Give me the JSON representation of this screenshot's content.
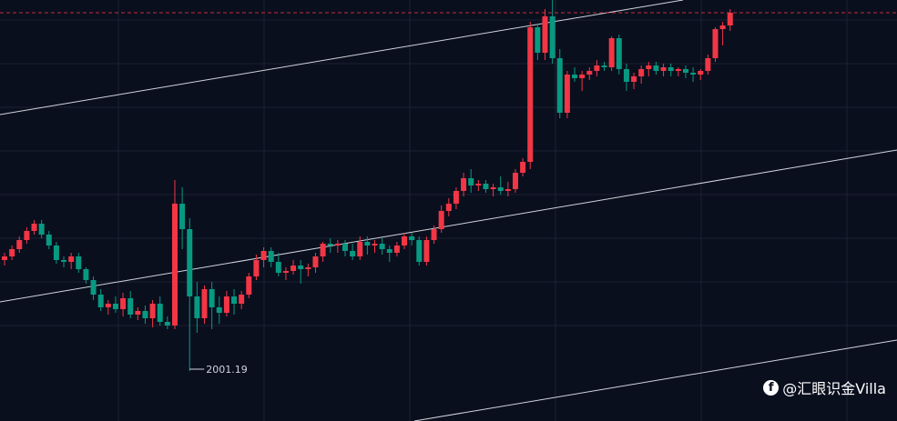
{
  "chart_data": {
    "type": "candlestick",
    "colors": {
      "up": "#f23645",
      "down": "#089981",
      "background": "#0a0f1e",
      "grid": "#1a2233",
      "channel": "#d0d4dc",
      "last_price_line": "#f23645"
    },
    "low_marker_label": "2001.19",
    "candles": [
      [
        2062,
        2066,
        2059,
        2064
      ],
      [
        2064,
        2070,
        2062,
        2068
      ],
      [
        2068,
        2075,
        2066,
        2073
      ],
      [
        2073,
        2080,
        2071,
        2078
      ],
      [
        2078,
        2084,
        2076,
        2082
      ],
      [
        2082,
        2084,
        2074,
        2076
      ],
      [
        2076,
        2078,
        2068,
        2070
      ],
      [
        2070,
        2072,
        2060,
        2062
      ],
      [
        2062,
        2064,
        2058,
        2061
      ],
      [
        2061,
        2066,
        2057,
        2064
      ],
      [
        2064,
        2066,
        2055,
        2057
      ],
      [
        2057,
        2058,
        2049,
        2051
      ],
      [
        2051,
        2053,
        2040,
        2043
      ],
      [
        2043,
        2046,
        2034,
        2036
      ],
      [
        2036,
        2040,
        2032,
        2038
      ],
      [
        2038,
        2042,
        2033,
        2035
      ],
      [
        2035,
        2044,
        2031,
        2041
      ],
      [
        2041,
        2045,
        2030,
        2032
      ],
      [
        2032,
        2036,
        2029,
        2034
      ],
      [
        2034,
        2037,
        2027,
        2030
      ],
      [
        2030,
        2040,
        2025,
        2038
      ],
      [
        2038,
        2042,
        2026,
        2028
      ],
      [
        2028,
        2031,
        2024,
        2026
      ],
      [
        2026,
        2106,
        2024,
        2093
      ],
      [
        2093,
        2102,
        2068,
        2079
      ],
      [
        2079,
        2085,
        2001,
        2042
      ],
      [
        2042,
        2050,
        2022,
        2030
      ],
      [
        2030,
        2048,
        2027,
        2046
      ],
      [
        2046,
        2050,
        2024,
        2036
      ],
      [
        2036,
        2042,
        2027,
        2033
      ],
      [
        2033,
        2045,
        2031,
        2042
      ],
      [
        2042,
        2046,
        2032,
        2038
      ],
      [
        2038,
        2045,
        2035,
        2043
      ],
      [
        2043,
        2055,
        2041,
        2053
      ],
      [
        2053,
        2065,
        2051,
        2062
      ],
      [
        2062,
        2069,
        2058,
        2067
      ],
      [
        2067,
        2069,
        2058,
        2061
      ],
      [
        2061,
        2066,
        2053,
        2055
      ],
      [
        2055,
        2058,
        2051,
        2056
      ],
      [
        2056,
        2062,
        2054,
        2059
      ],
      [
        2059,
        2062,
        2049,
        2057
      ],
      [
        2057,
        2060,
        2053,
        2058
      ],
      [
        2058,
        2066,
        2055,
        2064
      ],
      [
        2064,
        2072,
        2061,
        2071
      ],
      [
        2071,
        2074,
        2066,
        2070
      ],
      [
        2070,
        2073,
        2066,
        2071
      ],
      [
        2071,
        2073,
        2064,
        2067
      ],
      [
        2067,
        2071,
        2062,
        2064
      ],
      [
        2064,
        2075,
        2062,
        2072
      ],
      [
        2072,
        2075,
        2065,
        2070
      ],
      [
        2070,
        2073,
        2066,
        2071
      ],
      [
        2071,
        2074,
        2065,
        2068
      ],
      [
        2068,
        2070,
        2061,
        2066
      ],
      [
        2066,
        2072,
        2064,
        2070
      ],
      [
        2070,
        2077,
        2068,
        2075
      ],
      [
        2075,
        2077,
        2070,
        2073
      ],
      [
        2073,
        2075,
        2059,
        2061
      ],
      [
        2061,
        2075,
        2059,
        2073
      ],
      [
        2073,
        2081,
        2071,
        2079
      ],
      [
        2079,
        2092,
        2077,
        2089
      ],
      [
        2089,
        2096,
        2086,
        2093
      ],
      [
        2093,
        2102,
        2090,
        2100
      ],
      [
        2100,
        2110,
        2097,
        2107
      ],
      [
        2107,
        2112,
        2099,
        2103
      ],
      [
        2103,
        2106,
        2100,
        2104
      ],
      [
        2104,
        2106,
        2099,
        2101
      ],
      [
        2101,
        2104,
        2097,
        2102
      ],
      [
        2102,
        2108,
        2098,
        2100
      ],
      [
        2100,
        2105,
        2097,
        2101
      ],
      [
        2101,
        2112,
        2099,
        2110
      ],
      [
        2110,
        2118,
        2108,
        2116
      ],
      [
        2116,
        2193,
        2112,
        2190
      ],
      [
        2190,
        2192,
        2172,
        2176
      ],
      [
        2176,
        2200,
        2172,
        2196
      ],
      [
        2196,
        2207,
        2170,
        2173
      ],
      [
        2173,
        2178,
        2140,
        2143
      ],
      [
        2143,
        2166,
        2140,
        2164
      ],
      [
        2164,
        2168,
        2160,
        2162
      ],
      [
        2162,
        2166,
        2155,
        2164
      ],
      [
        2164,
        2168,
        2161,
        2166
      ],
      [
        2166,
        2172,
        2163,
        2169
      ],
      [
        2169,
        2171,
        2166,
        2168
      ],
      [
        2168,
        2185,
        2166,
        2184
      ],
      [
        2184,
        2186,
        2164,
        2167
      ],
      [
        2167,
        2170,
        2155,
        2160
      ],
      [
        2160,
        2165,
        2156,
        2163
      ],
      [
        2163,
        2169,
        2159,
        2167
      ],
      [
        2167,
        2171,
        2163,
        2169
      ],
      [
        2169,
        2171,
        2164,
        2166
      ],
      [
        2166,
        2170,
        2163,
        2168
      ],
      [
        2168,
        2170,
        2163,
        2166
      ],
      [
        2166,
        2168,
        2163,
        2167
      ],
      [
        2167,
        2169,
        2162,
        2165
      ],
      [
        2165,
        2168,
        2160,
        2164
      ],
      [
        2164,
        2167,
        2161,
        2166
      ],
      [
        2166,
        2175,
        2164,
        2173
      ],
      [
        2173,
        2190,
        2171,
        2189
      ],
      [
        2189,
        2193,
        2180,
        2191
      ],
      [
        2191,
        2200,
        2188,
        2198
      ]
    ]
  },
  "watermark": {
    "text": "@汇眼识金Villa",
    "icon": "facebook-icon"
  }
}
